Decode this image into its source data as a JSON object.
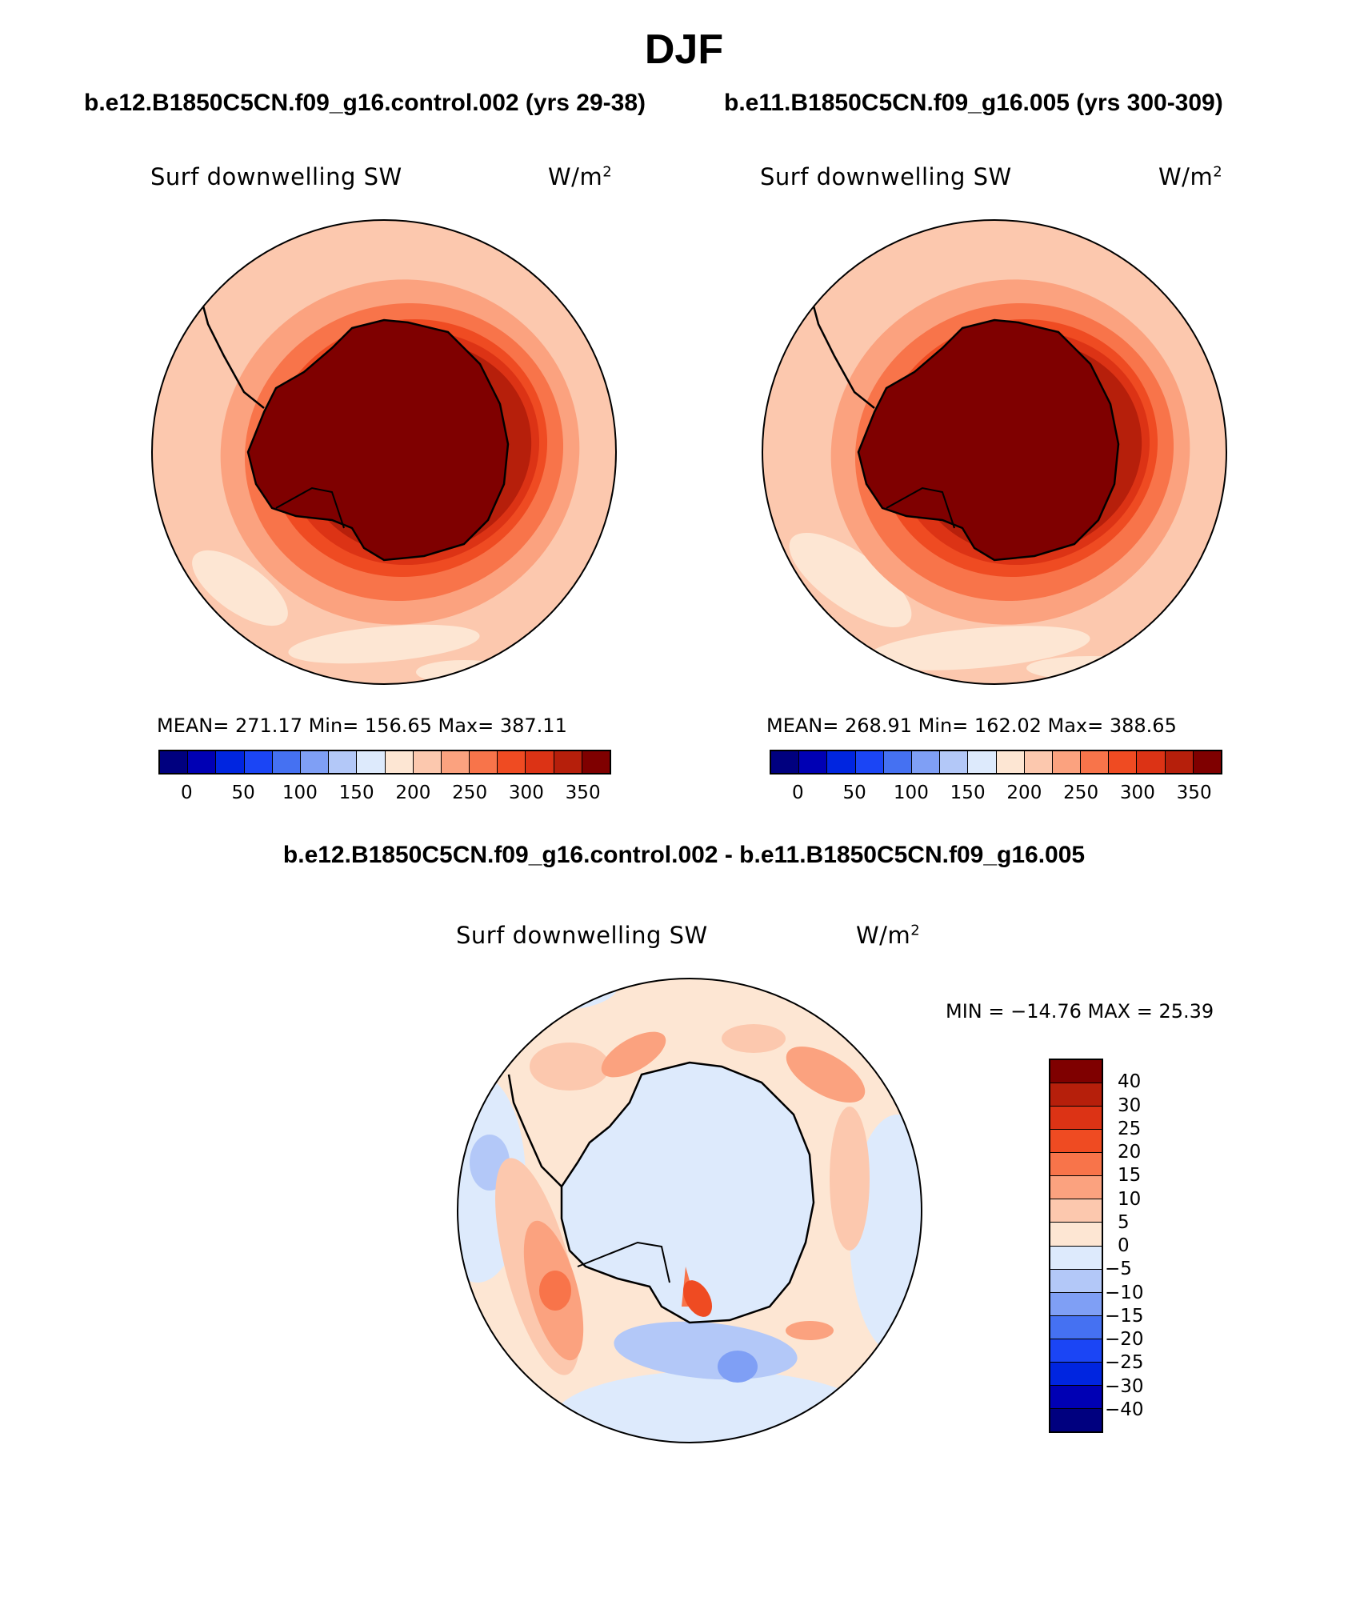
{
  "figure": {
    "title": "DJF",
    "diff_title": "b.e12.B1850C5CN.f09_g16.control.002 - b.e11.B1850C5CN.f09_g16.005"
  },
  "panels": [
    {
      "case_title": "b.e12.B1850C5CN.f09_g16.control.002 (yrs 29-38)",
      "variable": "Surf downwelling SW",
      "units": "W/m",
      "units_sup": "2",
      "stats_text": "MEAN= 271.17   Min= 156.65   Max= 387.11"
    },
    {
      "case_title": "b.e11.B1850C5CN.f09_g16.005 (yrs 300-309)",
      "variable": "Surf downwelling SW",
      "units": "W/m",
      "units_sup": "2",
      "stats_text": "MEAN= 268.91   Min= 162.02   Max= 388.65"
    }
  ],
  "diff_panel": {
    "variable": "Surf downwelling SW",
    "units": "W/m",
    "units_sup": "2",
    "minmax_text": "MIN = −14.76 MAX =   25.39"
  },
  "colorbar_abs": {
    "colors": [
      "#00007f",
      "#0000b4",
      "#0025e0",
      "#1b45f5",
      "#4571f2",
      "#7f9ff5",
      "#b3c8f8",
      "#ddeafc",
      "#fde6d3",
      "#fcc8ae",
      "#fba27f",
      "#f8744a",
      "#ef4b22",
      "#dc3315",
      "#b61f0b",
      "#7f0000"
    ],
    "ticks": [
      "0",
      "50",
      "100",
      "150",
      "200",
      "250",
      "300",
      "350"
    ]
  },
  "colorbar_diff": {
    "colors_top_to_bottom": [
      "#7f0000",
      "#b61f0b",
      "#dc3315",
      "#ef4b22",
      "#f8744a",
      "#fba27f",
      "#fcc8ae",
      "#fde6d3",
      "#ddeafc",
      "#b3c8f8",
      "#7f9ff5",
      "#4571f2",
      "#1b45f5",
      "#0025e0",
      "#0000b4",
      "#00007f"
    ],
    "ticks": [
      "40",
      "30",
      "25",
      "20",
      "15",
      "10",
      "5",
      "0",
      "−5",
      "−10",
      "−15",
      "−20",
      "−25",
      "−30",
      "−40"
    ]
  }
}
